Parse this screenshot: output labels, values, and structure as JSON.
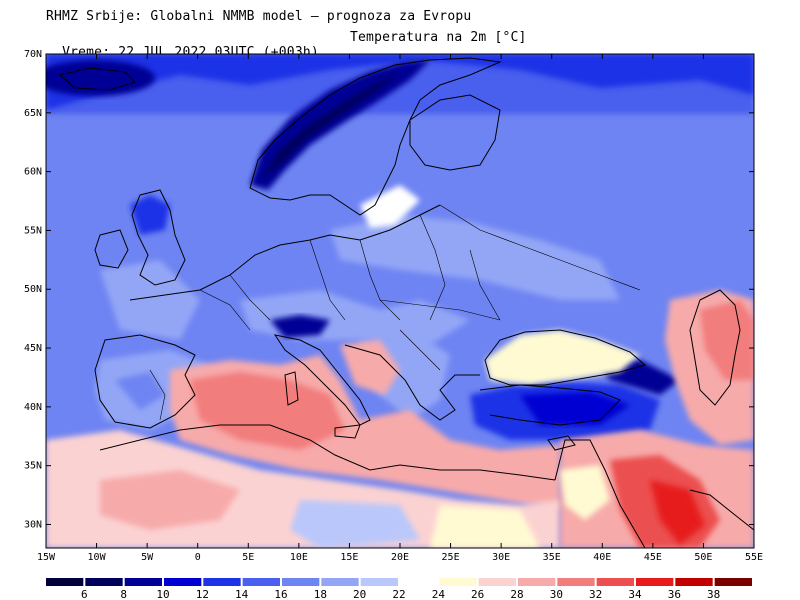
{
  "header": {
    "line1": "RHMZ Srbije: Globalni NMMB model — prognoza za Evropu",
    "valid_time": "Vreme: 22 JUL 2022 03UTC (+003h)",
    "parameter": "Temperatura na 2m [°C]"
  },
  "map": {
    "lat_range": [
      28,
      70
    ],
    "lon_range": [
      -15,
      55
    ],
    "lat_ticks": [
      "70N",
      "65N",
      "60N",
      "55N",
      "50N",
      "45N",
      "40N",
      "35N",
      "30N"
    ],
    "lat_tick_values": [
      70,
      65,
      60,
      55,
      50,
      45,
      40,
      35,
      30
    ],
    "lon_ticks": [
      "15W",
      "10W",
      "5W",
      "0",
      "5E",
      "10E",
      "15E",
      "20E",
      "25E",
      "30E",
      "35E",
      "40E",
      "45E",
      "50E",
      "55E"
    ],
    "lon_tick_values": [
      -15,
      -10,
      -5,
      0,
      5,
      10,
      15,
      20,
      25,
      30,
      35,
      40,
      45,
      50,
      55
    ]
  },
  "colorbar": {
    "labels": [
      "6",
      "8",
      "10",
      "12",
      "14",
      "16",
      "18",
      "20",
      "22",
      "24",
      "26",
      "28",
      "30",
      "32",
      "34",
      "36",
      "38"
    ],
    "colors": [
      "#00005a",
      "#000094",
      "#0000d2",
      "#1e32e6",
      "#4a5fee",
      "#6e84f2",
      "#93a6f6",
      "#bac7fa",
      "#ffffff",
      "#fffad2",
      "#fbd2d2",
      "#f7aaaa",
      "#f27d7d",
      "#ec5050",
      "#e61c1c",
      "#c20000",
      "#7a0000"
    ]
  }
}
